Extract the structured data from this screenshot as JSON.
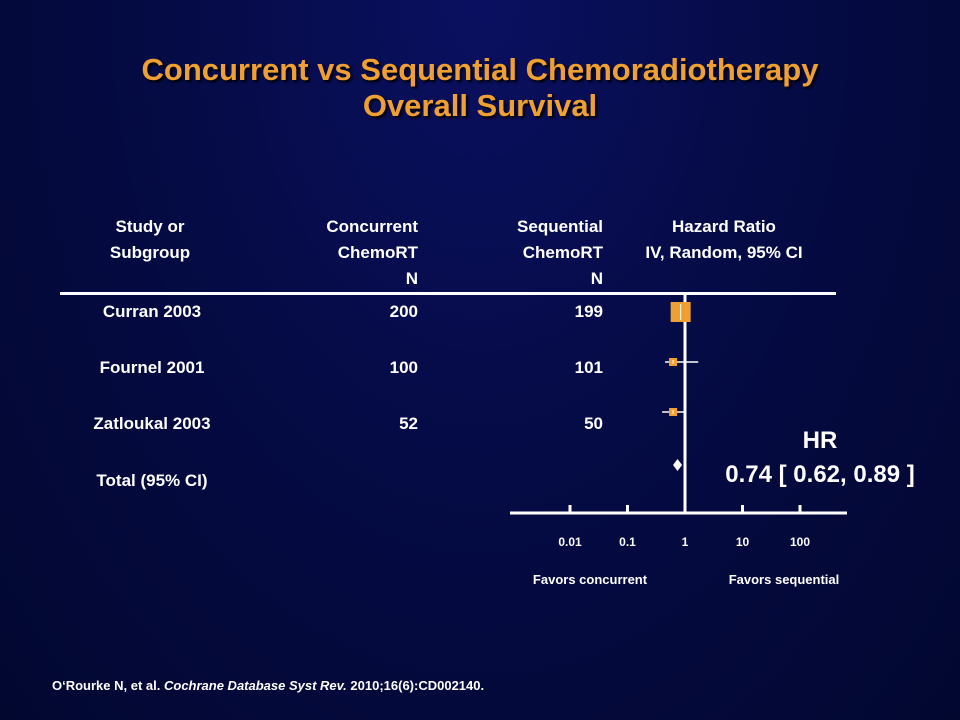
{
  "slide": {
    "title_line1": "Concurrent vs Sequential Chemoradiotherapy",
    "title_line2": "Overall Survival",
    "citation_authors": "O‘Rourke N, et al. ",
    "citation_journal": "Cochrane Database Syst Rev.",
    "citation_rest": " 2010;16(6):CD002140."
  },
  "table": {
    "headers": {
      "study_l1": "Study or",
      "study_l2": "Subgroup",
      "conc_l1": "Concurrent",
      "conc_l2": "ChemoRT",
      "conc_l3": "N",
      "seq_l1": "Sequential",
      "seq_l2": "ChemoRT",
      "seq_l3": "N",
      "hr_l1": "Hazard Ratio",
      "hr_l2": "IV, Random, 95% CI"
    },
    "rows": [
      {
        "study": "Curran 2003",
        "concurrent_n": "200",
        "sequential_n": "199"
      },
      {
        "study": "Fournel 2001",
        "concurrent_n": "100",
        "sequential_n": "101"
      },
      {
        "study": "Zatloukal 2003",
        "concurrent_n": "52",
        "sequential_n": "50"
      }
    ],
    "total_label": "Total (95% CI)"
  },
  "summary": {
    "hr_label": "HR",
    "hr_value": "0.74 [ 0.62, 0.89 ]"
  },
  "chart_data": {
    "type": "forest",
    "x_scale": "log",
    "xlim": [
      0.01,
      100
    ],
    "ticks": [
      0.01,
      0.1,
      1,
      10,
      100
    ],
    "tick_labels": [
      "0.01",
      "0.1",
      "1",
      "10",
      "100"
    ],
    "null_line": 1,
    "left_label": "Favors concurrent",
    "right_label": "Favors sequential",
    "studies": [
      {
        "name": "Curran 2003",
        "hr": 0.84,
        "ci": [
          0.72,
          1.0
        ],
        "weight": 3
      },
      {
        "name": "Fournel 2001",
        "hr": 0.62,
        "ci": [
          0.45,
          1.7
        ],
        "weight": 1
      },
      {
        "name": "Zatloukal 2003",
        "hr": 0.62,
        "ci": [
          0.4,
          0.95
        ],
        "weight": 1
      }
    ],
    "total": {
      "hr": 0.74,
      "ci": [
        0.62,
        0.89
      ]
    },
    "colors": {
      "marker": "#f0a030",
      "line": "#ffffff"
    }
  }
}
